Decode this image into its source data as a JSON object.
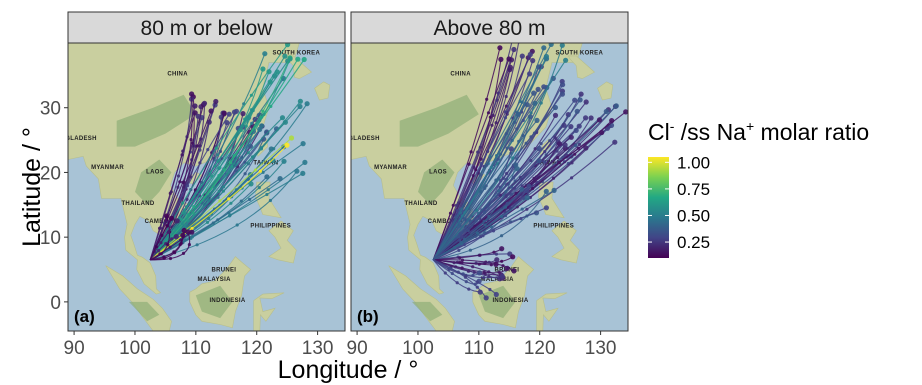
{
  "panels": [
    {
      "strip": "80 m or below",
      "tag": "(a)"
    },
    {
      "strip": "Above 80 m",
      "tag": "(b)"
    }
  ],
  "x_axis": {
    "title": "Longitude / °",
    "ticks": [
      "90",
      "100",
      "110",
      "120",
      "130"
    ],
    "range": [
      89,
      134.5
    ]
  },
  "y_axis": {
    "title": "Latitude / °",
    "ticks": [
      "0",
      "10",
      "20",
      "30"
    ],
    "range": [
      -4.5,
      40
    ]
  },
  "legend": {
    "title_parts": {
      "a": "Cl",
      "a_sup": "-",
      "b": " /ss Na",
      "b_sup": "+",
      "c": " molar ratio"
    },
    "ticks": [
      "1.00",
      "0.75",
      "0.50",
      "0.25"
    ],
    "tick_values": [
      1.0,
      0.75,
      0.5,
      0.25
    ],
    "range": [
      0.1,
      1.05
    ]
  },
  "map_labels": [
    "SOUTH KOREA",
    "CHINA",
    "MYANMAR",
    "LAOS",
    "THAILAND",
    "CAMBODIA",
    "PHILIPPINES",
    "TAIWAN",
    "BRUNEI",
    "MALAYSIA",
    "INDONESIA",
    "BANGLADESH"
  ],
  "colors": {
    "ocean": "#a8c3d6",
    "land": "#c9cf9f",
    "forest": "#8fae78",
    "strip_bg": "#d9d9d9",
    "trajectory_low": "#440154",
    "trajectory_high": "#fde725"
  },
  "receptor": {
    "lon": 102.5,
    "lat": 6.5
  },
  "trajectories": [
    {
      "panel": 0,
      "groups": [
        {
          "end": [
            112,
            30
          ],
          "n": 18,
          "value": 0.2
        },
        {
          "end": [
            118,
            28
          ],
          "n": 14,
          "value": 0.25
        },
        {
          "end": [
            121,
            26
          ],
          "n": 10,
          "value": 0.4
        },
        {
          "end": [
            124,
            36
          ],
          "n": 8,
          "value": 0.55
        },
        {
          "end": [
            126,
            38
          ],
          "n": 6,
          "value": 0.65
        },
        {
          "end": [
            127,
            30
          ],
          "n": 5,
          "value": 0.5
        },
        {
          "end": [
            125,
            22
          ],
          "n": 6,
          "value": 0.45
        },
        {
          "end": [
            121,
            20
          ],
          "n": 5,
          "value": 0.5
        },
        {
          "end": [
            123,
            25
          ],
          "n": 2,
          "value": 1.0
        },
        {
          "end": [
            108,
            12
          ],
          "n": 8,
          "value": 0.15
        }
      ]
    },
    {
      "panel": 1,
      "groups": [
        {
          "end": [
            116,
            38
          ],
          "n": 14,
          "value": 0.2
        },
        {
          "end": [
            121,
            34
          ],
          "n": 10,
          "value": 0.3
        },
        {
          "end": [
            125,
            30
          ],
          "n": 10,
          "value": 0.3
        },
        {
          "end": [
            130,
            28
          ],
          "n": 8,
          "value": 0.3
        },
        {
          "end": [
            126,
            25
          ],
          "n": 12,
          "value": 0.25
        },
        {
          "end": [
            132,
            27
          ],
          "n": 5,
          "value": 0.2
        },
        {
          "end": [
            120,
            16
          ],
          "n": 8,
          "value": 0.35
        },
        {
          "end": [
            114,
            6
          ],
          "n": 10,
          "value": 0.2
        },
        {
          "end": [
            111,
            2
          ],
          "n": 6,
          "value": 0.25
        },
        {
          "end": [
            122,
            38
          ],
          "n": 6,
          "value": 0.5
        },
        {
          "end": [
            118,
            30
          ],
          "n": 6,
          "value": 0.4
        },
        {
          "end": [
            117,
            23
          ],
          "n": 6,
          "value": 0.35
        }
      ]
    }
  ]
}
